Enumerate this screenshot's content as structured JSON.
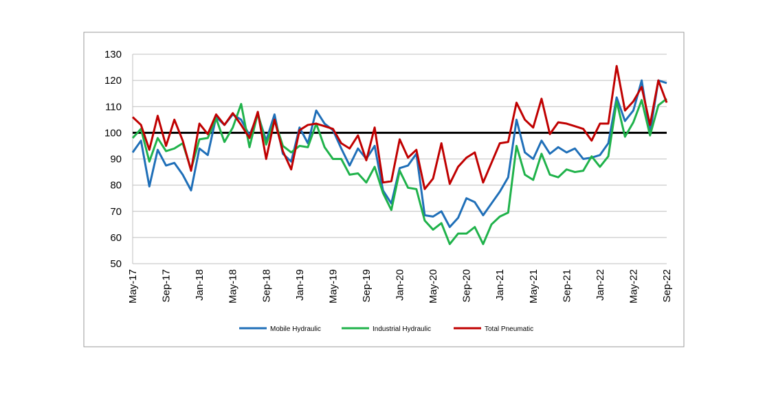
{
  "chart_data": {
    "type": "line",
    "categories": [
      "May-17",
      null,
      null,
      null,
      "Sep-17",
      null,
      null,
      null,
      "Jan-18",
      null,
      null,
      null,
      "May-18",
      null,
      null,
      null,
      "Sep-18",
      null,
      null,
      null,
      "Jan-19",
      null,
      null,
      null,
      "May-19",
      null,
      null,
      null,
      "Sep-19",
      null,
      null,
      null,
      "Jan-20",
      null,
      null,
      null,
      "May-20",
      null,
      null,
      null,
      "Sep-20",
      null,
      null,
      null,
      "Jan-21",
      null,
      null,
      null,
      "May-21",
      null,
      null,
      null,
      "Sep-21",
      null,
      null,
      null,
      "Jan-22",
      null,
      null,
      null,
      "May-22",
      null,
      null,
      null,
      "Sep-22"
    ],
    "series": [
      {
        "name": "Mobile Hydraulic",
        "color": "#1f6fb8",
        "values": [
          92.5,
          97,
          79.5,
          93.5,
          87.5,
          88.5,
          84,
          78,
          94,
          91.5,
          106,
          103,
          107,
          105,
          99,
          107,
          97,
          107,
          92,
          89,
          102,
          96,
          108.5,
          103.5,
          101,
          94,
          87.5,
          94,
          90,
          95,
          78,
          73,
          86.5,
          87.5,
          92,
          68.5,
          68,
          70,
          64,
          67.5,
          75,
          73.5,
          68.5,
          73,
          77.5,
          83,
          105,
          92.5,
          90,
          97,
          92,
          94.5,
          92.5,
          94,
          90,
          90.5,
          91.5,
          96,
          113.5,
          104.5,
          108.5,
          120,
          100,
          120,
          119
        ]
      },
      {
        "name": "Industrial Hydraulic",
        "color": "#1fb24a",
        "values": [
          98,
          101.5,
          89,
          98,
          93,
          94,
          96,
          86,
          97.5,
          98,
          105.5,
          96.5,
          102,
          111,
          94.5,
          107.5,
          95.5,
          105,
          95,
          92.5,
          95,
          94.5,
          103.5,
          94.5,
          90,
          90,
          84,
          84.5,
          81,
          87,
          77,
          70.5,
          85.5,
          79,
          78.5,
          66.5,
          63,
          65.5,
          57.5,
          61.5,
          61.5,
          64,
          57.5,
          65,
          68,
          69.5,
          95,
          84,
          82,
          92,
          84,
          83,
          86,
          85,
          85.5,
          91,
          87,
          91,
          112,
          98.5,
          104,
          112.5,
          99,
          110.5,
          113
        ]
      },
      {
        "name": "Total Pneumatic",
        "color": "#c00000",
        "values": [
          106,
          103,
          93.5,
          106.5,
          95,
          105,
          97,
          85.5,
          103.5,
          99.5,
          107,
          103,
          107.5,
          103,
          98,
          108,
          90,
          105,
          93,
          86,
          101,
          103,
          103.5,
          102.5,
          101.5,
          96,
          94,
          99,
          89.5,
          102,
          81,
          81.5,
          97.5,
          90.5,
          93.5,
          78.5,
          82.5,
          96,
          80.5,
          87,
          90.5,
          92.5,
          81,
          88.5,
          96,
          96.5,
          111.5,
          105,
          102,
          113,
          99.5,
          104,
          103.5,
          102.5,
          101.5,
          97,
          103.5,
          103.5,
          125.5,
          108.5,
          112,
          117.5,
          103,
          120,
          111.5
        ]
      }
    ],
    "reference_line": 100,
    "ylim": [
      50,
      130
    ],
    "yticks": [
      50,
      60,
      70,
      80,
      90,
      100,
      110,
      120,
      130
    ],
    "grid": true,
    "legend": "bottom"
  }
}
